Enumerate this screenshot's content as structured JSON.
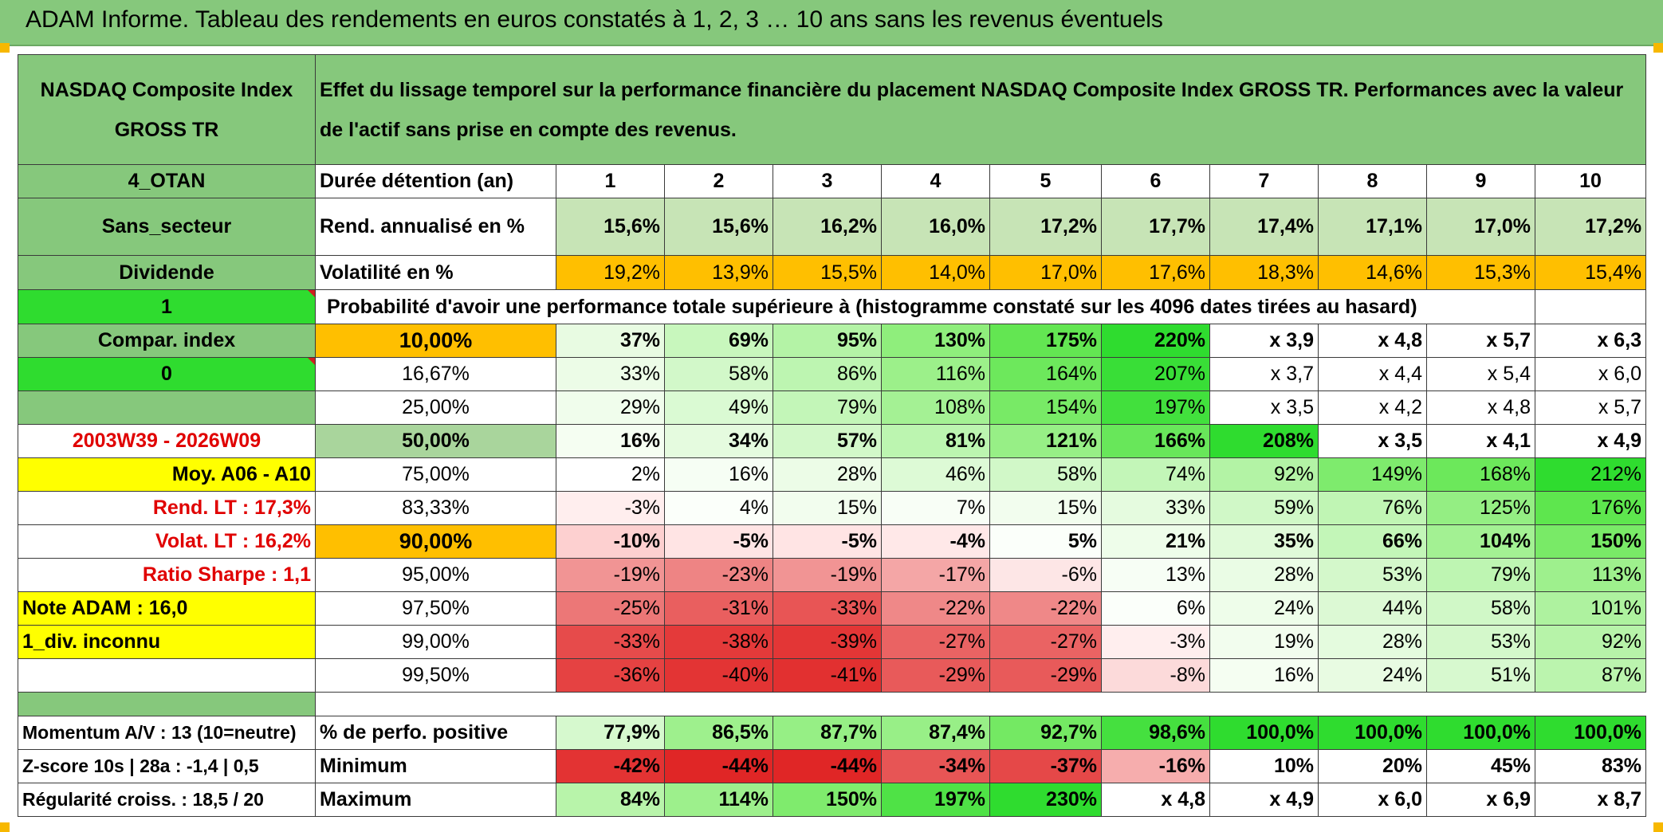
{
  "title": "ADAM Informe. Tableau des rendements en euros constatés à 1, 2, 3 … 10 ans sans les revenus éventuels",
  "header": {
    "index_name": "NASDAQ Composite Index GROSS TR",
    "description": "Effet du lissage temporel sur la performance financière du placement NASDAQ Composite Index GROSS TR. Performances avec la valeur de l'actif sans prise en compte des revenus."
  },
  "side_labels": {
    "otan": "4_OTAN",
    "secteur": "Sans_secteur",
    "dividende": "Dividende",
    "one": "1",
    "compar": "Compar. index",
    "zero": "0",
    "period": "2003W39 - 2026W09",
    "moy": "Moy. A06 - A10",
    "rend_lt": "Rend. LT :   17,3%",
    "volat_lt": "Volat. LT :   16,2%",
    "sharpe": "Ratio Sharpe :   1,1",
    "note": "Note ADAM : 16,0",
    "div": "1_div. inconnu",
    "momentum": "Momentum A/V : 13 (10=neutre)",
    "zscore": "Z-score 10s | 28a : -1,4 | 0,5",
    "regularite": "Régularité croiss. : 18,5 / 20"
  },
  "row_labels": {
    "duree": "Durée détention (an)",
    "rend": "Rend. annualisé en %",
    "vol": "Volatilité en %",
    "proba": "Probabilité d'avoir une performance totale supérieure à (histogramme constaté sur les 4096 dates tirées au hasard)",
    "positive": "% de perfo. positive",
    "minimum": "Minimum",
    "maximum": "Maximum"
  },
  "years": [
    "1",
    "2",
    "3",
    "4",
    "5",
    "6",
    "7",
    "8",
    "9",
    "10"
  ],
  "rend": [
    "15,6%",
    "15,6%",
    "16,2%",
    "16,0%",
    "17,2%",
    "17,7%",
    "17,4%",
    "17,1%",
    "17,0%",
    "17,2%"
  ],
  "vol": [
    "19,2%",
    "13,9%",
    "15,5%",
    "14,0%",
    "17,0%",
    "17,6%",
    "18,3%",
    "14,6%",
    "15,3%",
    "15,4%"
  ],
  "quantiles": [
    {
      "p": "10,00%",
      "v": [
        "37%",
        "69%",
        "95%",
        "130%",
        "175%",
        "220%",
        "x 3,9",
        "x 4,8",
        "x 5,7",
        "x 6,3"
      ]
    },
    {
      "p": "16,67%",
      "v": [
        "33%",
        "58%",
        "86%",
        "116%",
        "164%",
        "207%",
        "x 3,7",
        "x 4,4",
        "x 5,4",
        "x 6,0"
      ]
    },
    {
      "p": "25,00%",
      "v": [
        "29%",
        "49%",
        "79%",
        "108%",
        "154%",
        "197%",
        "x 3,5",
        "x 4,2",
        "x 4,8",
        "x 5,7"
      ]
    },
    {
      "p": "50,00%",
      "v": [
        "16%",
        "34%",
        "57%",
        "81%",
        "121%",
        "166%",
        "208%",
        "x 3,5",
        "x 4,1",
        "x 4,9"
      ]
    },
    {
      "p": "75,00%",
      "v": [
        "2%",
        "16%",
        "28%",
        "46%",
        "58%",
        "74%",
        "92%",
        "149%",
        "168%",
        "212%"
      ]
    },
    {
      "p": "83,33%",
      "v": [
        "-3%",
        "4%",
        "15%",
        "7%",
        "15%",
        "33%",
        "59%",
        "76%",
        "125%",
        "176%"
      ]
    },
    {
      "p": "90,00%",
      "v": [
        "-10%",
        "-5%",
        "-5%",
        "-4%",
        "5%",
        "21%",
        "35%",
        "66%",
        "104%",
        "150%"
      ]
    },
    {
      "p": "95,00%",
      "v": [
        "-19%",
        "-23%",
        "-19%",
        "-17%",
        "-6%",
        "13%",
        "28%",
        "53%",
        "79%",
        "113%"
      ]
    },
    {
      "p": "97,50%",
      "v": [
        "-25%",
        "-31%",
        "-33%",
        "-22%",
        "-22%",
        "6%",
        "24%",
        "44%",
        "58%",
        "101%"
      ]
    },
    {
      "p": "99,00%",
      "v": [
        "-33%",
        "-38%",
        "-39%",
        "-27%",
        "-27%",
        "-3%",
        "19%",
        "28%",
        "53%",
        "92%"
      ]
    },
    {
      "p": "99,50%",
      "v": [
        "-36%",
        "-40%",
        "-41%",
        "-29%",
        "-29%",
        "-8%",
        "16%",
        "24%",
        "51%",
        "87%"
      ]
    }
  ],
  "positive": [
    "77,9%",
    "86,5%",
    "87,7%",
    "87,4%",
    "92,7%",
    "98,6%",
    "100,0%",
    "100,0%",
    "100,0%",
    "100,0%"
  ],
  "minimum": [
    "-42%",
    "-44%",
    "-44%",
    "-34%",
    "-37%",
    "-16%",
    "10%",
    "20%",
    "45%",
    "83%"
  ],
  "maximum": [
    "84%",
    "114%",
    "150%",
    "197%",
    "230%",
    "x 4,8",
    "x 4,9",
    "x 6,0",
    "x 6,9",
    "x 8,7"
  ],
  "colors": {
    "header_green": "#86c87c",
    "light_green": "#c7e4b6",
    "orange": "#ffbf00",
    "yellow": "#ffff00",
    "bright_green": "#2fdc2f",
    "red_text": "#e00000"
  }
}
